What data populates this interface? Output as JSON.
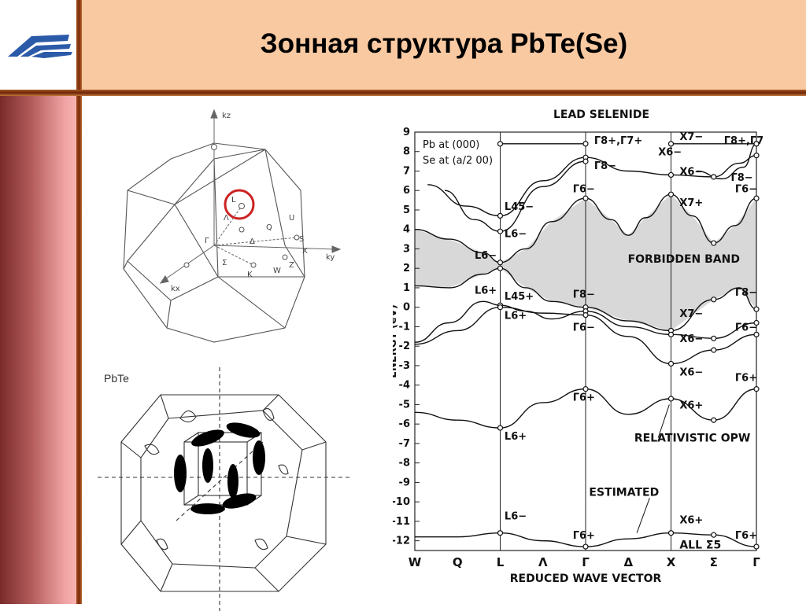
{
  "title": "Зонная структура PbTe(Se)",
  "colors": {
    "header_bg": "#f9c9a2",
    "accent_line": "#8b3510",
    "sidebar_top": "#7a2a2a",
    "sidebar_bottom": "#f7b3b3",
    "highlight_circle": "#cc2222",
    "forbidden_band": "#d8d8d8"
  },
  "logo": {
    "icon": "wing-logo-icon"
  },
  "bz_top": {
    "axis_labels": {
      "kz": "kz",
      "ky": "ky",
      "kx": "kx"
    },
    "points": [
      "L",
      "Λ",
      "Γ",
      "Δ",
      "Q",
      "U",
      "S",
      "X",
      "Σ",
      "K",
      "W",
      "Z"
    ]
  },
  "bz_bottom": {
    "label": "PbTe"
  },
  "chart_data": {
    "type": "line",
    "title": "LEAD SELENIDE",
    "legend_lines": [
      "Pb at (000)",
      "Se at (a/2 00)"
    ],
    "xlabel": "REDUCED WAVE VECTOR",
    "ylabel": "ENERGY (eV)",
    "ylim": [
      -12.5,
      9
    ],
    "y_ticks": [
      9,
      8,
      7,
      6,
      5,
      4,
      3,
      2,
      1,
      0,
      -1,
      -2,
      -3,
      -4,
      -5,
      -6,
      -7,
      -8,
      -9,
      -10,
      -11,
      -12
    ],
    "x_ticks": [
      {
        "label": "W",
        "pos": 0
      },
      {
        "label": "Q",
        "pos": 0.5
      },
      {
        "label": "L",
        "pos": 1
      },
      {
        "label": "Λ",
        "pos": 1.5
      },
      {
        "label": "Γ",
        "pos": 2
      },
      {
        "label": "Δ",
        "pos": 2.5
      },
      {
        "label": "X",
        "pos": 3
      },
      {
        "label": "Σ",
        "pos": 3.5
      },
      {
        "label": "Γ",
        "pos": 4
      }
    ],
    "vertical_lines": [
      1,
      2,
      3
    ],
    "annotations": {
      "forbidden": "FORBIDDEN BAND",
      "relativistic": "RELATIVISTIC OPW",
      "estimated": "ESTIMATED",
      "all_sigma": "ALL Σ5"
    },
    "level_labels": [
      {
        "text": "Γ8+,Γ7+",
        "x": 2.1,
        "y": 8.4
      },
      {
        "text": "Γ8−",
        "x": 2.1,
        "y": 7.1
      },
      {
        "text": "Γ6−",
        "x": 1.85,
        "y": 5.9
      },
      {
        "text": "L45−",
        "x": 1.05,
        "y": 5.0
      },
      {
        "text": "L6−",
        "x": 1.05,
        "y": 3.6
      },
      {
        "text": "L6−",
        "x": 0.7,
        "y": 2.5
      },
      {
        "text": "L6+",
        "x": 0.7,
        "y": 0.7
      },
      {
        "text": "L45+",
        "x": 1.05,
        "y": 0.4
      },
      {
        "text": "L6+",
        "x": 1.05,
        "y": -0.6
      },
      {
        "text": "Γ8−",
        "x": 1.85,
        "y": 0.5
      },
      {
        "text": "Γ6−",
        "x": 1.85,
        "y": -1.2
      },
      {
        "text": "X6−",
        "x": 2.85,
        "y": 7.8
      },
      {
        "text": "X7−",
        "x": 3.1,
        "y": 8.6
      },
      {
        "text": "X6−",
        "x": 3.1,
        "y": 6.8
      },
      {
        "text": "X7+",
        "x": 3.1,
        "y": 5.2
      },
      {
        "text": "X7−",
        "x": 3.1,
        "y": -0.5
      },
      {
        "text": "X6−",
        "x": 3.1,
        "y": -1.8
      },
      {
        "text": "X6−",
        "x": 3.1,
        "y": -3.5
      },
      {
        "text": "X6+",
        "x": 3.1,
        "y": -5.2
      },
      {
        "text": "X6+",
        "x": 3.1,
        "y": -11.1
      },
      {
        "text": "Γ8+,Γ7+",
        "x": 3.62,
        "y": 8.4
      },
      {
        "text": "Γ8−",
        "x": 3.7,
        "y": 6.5
      },
      {
        "text": "Γ6−",
        "x": 3.75,
        "y": 5.9
      },
      {
        "text": "Γ8−",
        "x": 3.75,
        "y": 0.6
      },
      {
        "text": "Γ6−",
        "x": 3.75,
        "y": -1.2
      },
      {
        "text": "Γ6+",
        "x": 3.75,
        "y": -3.8
      },
      {
        "text": "Γ6+",
        "x": 1.85,
        "y": -4.8
      },
      {
        "text": "L6+",
        "x": 1.05,
        "y": -6.8
      },
      {
        "text": "L6−",
        "x": 1.05,
        "y": -10.9
      },
      {
        "text": "Γ6+",
        "x": 1.85,
        "y": -11.9
      },
      {
        "text": "Γ6+",
        "x": 3.75,
        "y": -11.9
      }
    ],
    "series": [
      {
        "values": [
          [
            0,
            4
          ],
          [
            0.4,
            3.5
          ],
          [
            0.8,
            2.8
          ],
          [
            1,
            2.3
          ],
          [
            1.3,
            3.0
          ],
          [
            1.6,
            4.4
          ],
          [
            2,
            5.6
          ],
          [
            2.3,
            4.5
          ],
          [
            2.5,
            3.7
          ],
          [
            2.7,
            4.6
          ],
          [
            3,
            5.8
          ],
          [
            3.25,
            4.7
          ],
          [
            3.5,
            3.3
          ],
          [
            3.75,
            4.2
          ],
          [
            4,
            5.6
          ]
        ]
      },
      {
        "values": [
          [
            0,
            1.1
          ],
          [
            0.4,
            1.0
          ],
          [
            0.8,
            1.7
          ],
          [
            1,
            2.0
          ],
          [
            1.3,
            1.0
          ],
          [
            1.6,
            0.3
          ],
          [
            2,
            0
          ],
          [
            2.5,
            -0.7
          ],
          [
            3,
            -1.2
          ],
          [
            3.5,
            0.4
          ],
          [
            3.8,
            1.0
          ],
          [
            4,
            -0.1
          ]
        ]
      },
      {
        "values": [
          [
            0,
            -1.8
          ],
          [
            0.4,
            -0.8
          ],
          [
            0.8,
            0.3
          ],
          [
            1,
            0.1
          ],
          [
            1.3,
            -0.2
          ],
          [
            1.6,
            -0.6
          ],
          [
            2,
            -0.2
          ],
          [
            2.5,
            -1.0
          ],
          [
            3,
            -1.4
          ],
          [
            3.5,
            -1.6
          ],
          [
            4,
            -0.8
          ]
        ]
      },
      {
        "values": [
          [
            0,
            -1.9
          ],
          [
            0.5,
            -1.2
          ],
          [
            1,
            0.0
          ],
          [
            1.5,
            -0.3
          ],
          [
            2,
            -0.4
          ],
          [
            2.5,
            -1.5
          ],
          [
            3,
            -2.9
          ],
          [
            3.5,
            -2.2
          ],
          [
            4,
            -1.4
          ]
        ]
      },
      {
        "values": [
          [
            0.15,
            6.3
          ],
          [
            0.6,
            5.2
          ],
          [
            1,
            4.7
          ],
          [
            1.5,
            6.5
          ],
          [
            2,
            7.7
          ],
          [
            2.5,
            7.0
          ],
          [
            3,
            6.8
          ],
          [
            3.5,
            6.7
          ],
          [
            3.8,
            7.4
          ],
          [
            4,
            7.8
          ]
        ]
      },
      {
        "values": [
          [
            0.35,
            6.0
          ],
          [
            0.7,
            4.5
          ],
          [
            1,
            3.9
          ],
          [
            1.5,
            6.2
          ],
          [
            2,
            7.5
          ]
        ]
      },
      {
        "values": [
          [
            0,
            -5.4
          ],
          [
            0.5,
            -5.8
          ],
          [
            1,
            -6.2
          ],
          [
            1.5,
            -4.9
          ],
          [
            2,
            -4.2
          ],
          [
            2.5,
            -5.5
          ],
          [
            3,
            -4.7
          ],
          [
            3.5,
            -5.8
          ],
          [
            4,
            -4.2
          ]
        ]
      },
      {
        "values": [
          [
            0,
            -11.8
          ],
          [
            0.5,
            -11.8
          ],
          [
            1,
            -11.6
          ],
          [
            1.5,
            -12.0
          ],
          [
            2,
            -12.3
          ],
          [
            2.5,
            -11.9
          ],
          [
            3,
            -11.6
          ],
          [
            3.5,
            -11.7
          ],
          [
            4,
            -12.3
          ]
        ]
      },
      {
        "values": [
          [
            3.3,
            7.0
          ],
          [
            3.6,
            6.6
          ],
          [
            3.85,
            7.2
          ],
          [
            4,
            8.4
          ]
        ]
      },
      {
        "values": [
          [
            1,
            8.4
          ],
          [
            1.5,
            8.4
          ],
          [
            2,
            8.4
          ]
        ]
      },
      {
        "values": [
          [
            3,
            8.4
          ],
          [
            4,
            8.4
          ]
        ]
      }
    ]
  }
}
